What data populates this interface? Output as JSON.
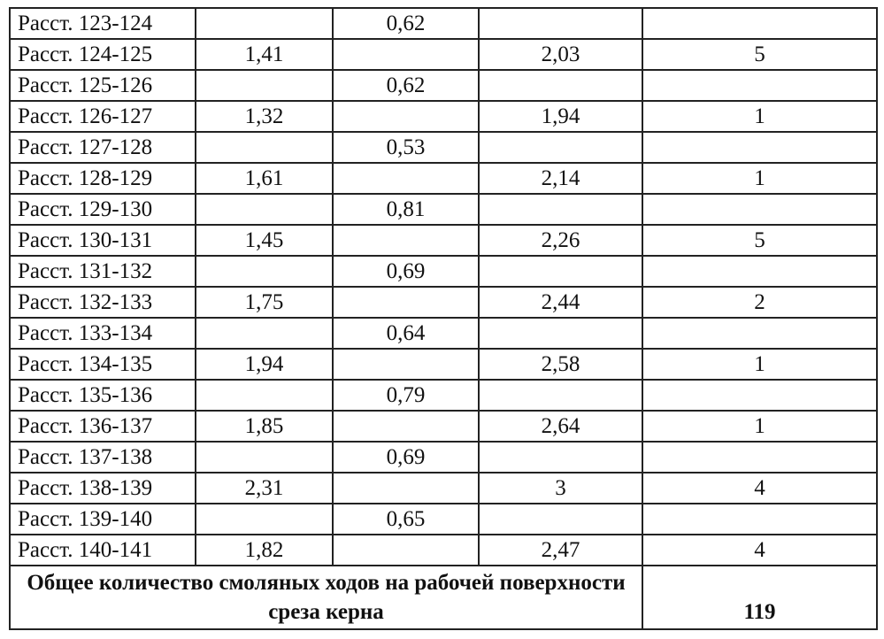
{
  "rows": [
    {
      "label": "Расст. 123-124",
      "c2": "",
      "c3": "0,62",
      "c4": "",
      "c5": ""
    },
    {
      "label": "Расст. 124-125",
      "c2": "1,41",
      "c3": "",
      "c4": "2,03",
      "c5": "5"
    },
    {
      "label": "Расст. 125-126",
      "c2": "",
      "c3": "0,62",
      "c4": "",
      "c5": ""
    },
    {
      "label": "Расст. 126-127",
      "c2": "1,32",
      "c3": "",
      "c4": "1,94",
      "c5": "1"
    },
    {
      "label": "Расст. 127-128",
      "c2": "",
      "c3": "0,53",
      "c4": "",
      "c5": ""
    },
    {
      "label": "Расст. 128-129",
      "c2": "1,61",
      "c3": "",
      "c4": "2,14",
      "c5": "1"
    },
    {
      "label": "Расст. 129-130",
      "c2": "",
      "c3": "0,81",
      "c4": "",
      "c5": ""
    },
    {
      "label": "Расст. 130-131",
      "c2": "1,45",
      "c3": "",
      "c4": "2,26",
      "c5": "5"
    },
    {
      "label": "Расст. 131-132",
      "c2": "",
      "c3": "0,69",
      "c4": "",
      "c5": ""
    },
    {
      "label": "Расст. 132-133",
      "c2": "1,75",
      "c3": "",
      "c4": "2,44",
      "c5": "2"
    },
    {
      "label": "Расст. 133-134",
      "c2": "",
      "c3": "0,64",
      "c4": "",
      "c5": ""
    },
    {
      "label": "Расст. 134-135",
      "c2": "1,94",
      "c3": "",
      "c4": "2,58",
      "c5": "1"
    },
    {
      "label": "Расст. 135-136",
      "c2": "",
      "c3": "0,79",
      "c4": "",
      "c5": ""
    },
    {
      "label": "Расст. 136-137",
      "c2": "1,85",
      "c3": "",
      "c4": "2,64",
      "c5": "1"
    },
    {
      "label": "Расст. 137-138",
      "c2": "",
      "c3": "0,69",
      "c4": "",
      "c5": ""
    },
    {
      "label": "Расст. 138-139",
      "c2": "2,31",
      "c3": "",
      "c4": "3",
      "c5": "4"
    },
    {
      "label": "Расст. 139-140",
      "c2": "",
      "c3": "0,65",
      "c4": "",
      "c5": ""
    },
    {
      "label": "Расст. 140-141",
      "c2": "1,82",
      "c3": "",
      "c4": "2,47",
      "c5": "4"
    }
  ],
  "total": {
    "label": "Общее количество смоляных ходов на рабочей поверхности среза керна",
    "value": "119"
  }
}
